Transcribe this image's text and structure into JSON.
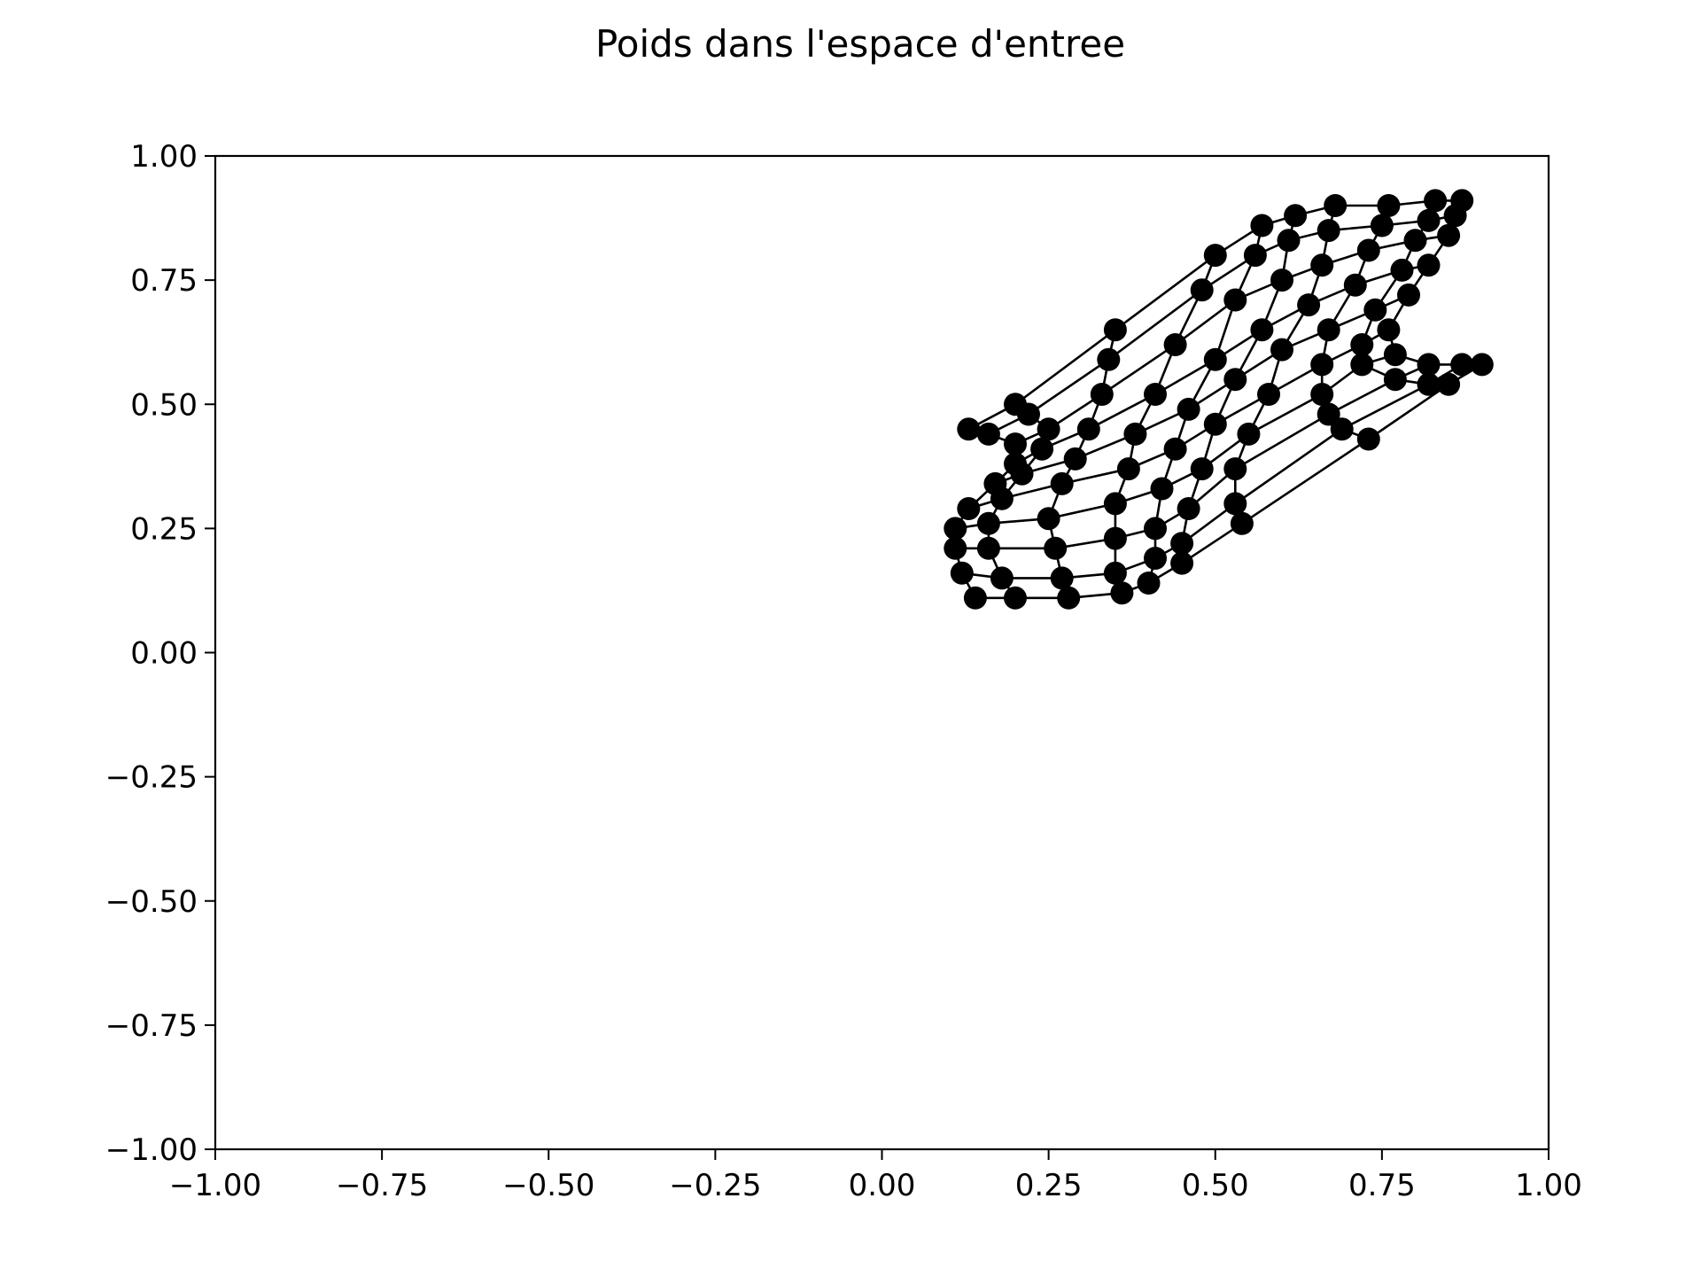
{
  "chart_data": {
    "type": "scatter",
    "title": "Poids dans l'espace d'entree",
    "xlabel": "",
    "ylabel": "",
    "xlim": [
      -1.0,
      1.0
    ],
    "ylim": [
      -1.0,
      1.0
    ],
    "xticks": [
      "−1.00",
      "−0.75",
      "−0.50",
      "−0.25",
      "0.00",
      "0.25",
      "0.50",
      "0.75",
      "1.00"
    ],
    "yticks": [
      "1.00",
      "0.75",
      "0.50",
      "0.25",
      "0.00",
      "−0.25",
      "−0.50",
      "−0.75",
      "−1.00"
    ],
    "grid": false,
    "legend": "none",
    "color": "#000000",
    "grid_points": [
      [
        [
          0.14,
          0.11
        ],
        [
          0.2,
          0.11
        ],
        [
          0.28,
          0.11
        ],
        [
          0.36,
          0.12
        ],
        [
          0.4,
          0.14
        ],
        [
          0.45,
          0.18
        ],
        [
          0.54,
          0.26
        ],
        [
          0.73,
          0.43
        ],
        [
          0.85,
          0.54
        ],
        [
          0.9,
          0.58
        ]
      ],
      [
        [
          0.12,
          0.16
        ],
        [
          0.18,
          0.15
        ],
        [
          0.27,
          0.15
        ],
        [
          0.35,
          0.16
        ],
        [
          0.41,
          0.19
        ],
        [
          0.45,
          0.22
        ],
        [
          0.53,
          0.3
        ],
        [
          0.69,
          0.45
        ],
        [
          0.82,
          0.54
        ],
        [
          0.87,
          0.58
        ]
      ],
      [
        [
          0.11,
          0.21
        ],
        [
          0.16,
          0.21
        ],
        [
          0.26,
          0.21
        ],
        [
          0.35,
          0.23
        ],
        [
          0.41,
          0.25
        ],
        [
          0.46,
          0.29
        ],
        [
          0.53,
          0.37
        ],
        [
          0.67,
          0.48
        ],
        [
          0.77,
          0.55
        ],
        [
          0.82,
          0.58
        ]
      ],
      [
        [
          0.11,
          0.25
        ],
        [
          0.16,
          0.26
        ],
        [
          0.25,
          0.27
        ],
        [
          0.35,
          0.3
        ],
        [
          0.42,
          0.33
        ],
        [
          0.48,
          0.37
        ],
        [
          0.55,
          0.44
        ],
        [
          0.66,
          0.52
        ],
        [
          0.72,
          0.58
        ],
        [
          0.77,
          0.6
        ]
      ],
      [
        [
          0.13,
          0.29
        ],
        [
          0.18,
          0.31
        ],
        [
          0.27,
          0.34
        ],
        [
          0.37,
          0.37
        ],
        [
          0.44,
          0.41
        ],
        [
          0.5,
          0.46
        ],
        [
          0.58,
          0.52
        ],
        [
          0.66,
          0.58
        ],
        [
          0.72,
          0.62
        ],
        [
          0.76,
          0.65
        ]
      ],
      [
        [
          0.17,
          0.34
        ],
        [
          0.21,
          0.36
        ],
        [
          0.29,
          0.39
        ],
        [
          0.38,
          0.44
        ],
        [
          0.46,
          0.49
        ],
        [
          0.53,
          0.55
        ],
        [
          0.6,
          0.61
        ],
        [
          0.67,
          0.65
        ],
        [
          0.74,
          0.69
        ],
        [
          0.79,
          0.72
        ]
      ],
      [
        [
          0.2,
          0.38
        ],
        [
          0.24,
          0.41
        ],
        [
          0.31,
          0.45
        ],
        [
          0.41,
          0.52
        ],
        [
          0.5,
          0.59
        ],
        [
          0.57,
          0.65
        ],
        [
          0.64,
          0.7
        ],
        [
          0.71,
          0.74
        ],
        [
          0.78,
          0.77
        ],
        [
          0.82,
          0.78
        ]
      ],
      [
        [
          0.2,
          0.42
        ],
        [
          0.25,
          0.45
        ],
        [
          0.33,
          0.52
        ],
        [
          0.44,
          0.62
        ],
        [
          0.53,
          0.71
        ],
        [
          0.6,
          0.75
        ],
        [
          0.66,
          0.78
        ],
        [
          0.73,
          0.81
        ],
        [
          0.8,
          0.83
        ],
        [
          0.85,
          0.84
        ]
      ],
      [
        [
          0.16,
          0.44
        ],
        [
          0.22,
          0.48
        ],
        [
          0.34,
          0.59
        ],
        [
          0.48,
          0.73
        ],
        [
          0.56,
          0.8
        ],
        [
          0.61,
          0.83
        ],
        [
          0.67,
          0.85
        ],
        [
          0.75,
          0.86
        ],
        [
          0.82,
          0.87
        ],
        [
          0.86,
          0.88
        ]
      ],
      [
        [
          0.13,
          0.45
        ],
        [
          0.2,
          0.5
        ],
        [
          0.35,
          0.65
        ],
        [
          0.5,
          0.8
        ],
        [
          0.57,
          0.86
        ],
        [
          0.62,
          0.88
        ],
        [
          0.68,
          0.9
        ],
        [
          0.76,
          0.9
        ],
        [
          0.83,
          0.91
        ],
        [
          0.87,
          0.91
        ]
      ]
    ]
  }
}
